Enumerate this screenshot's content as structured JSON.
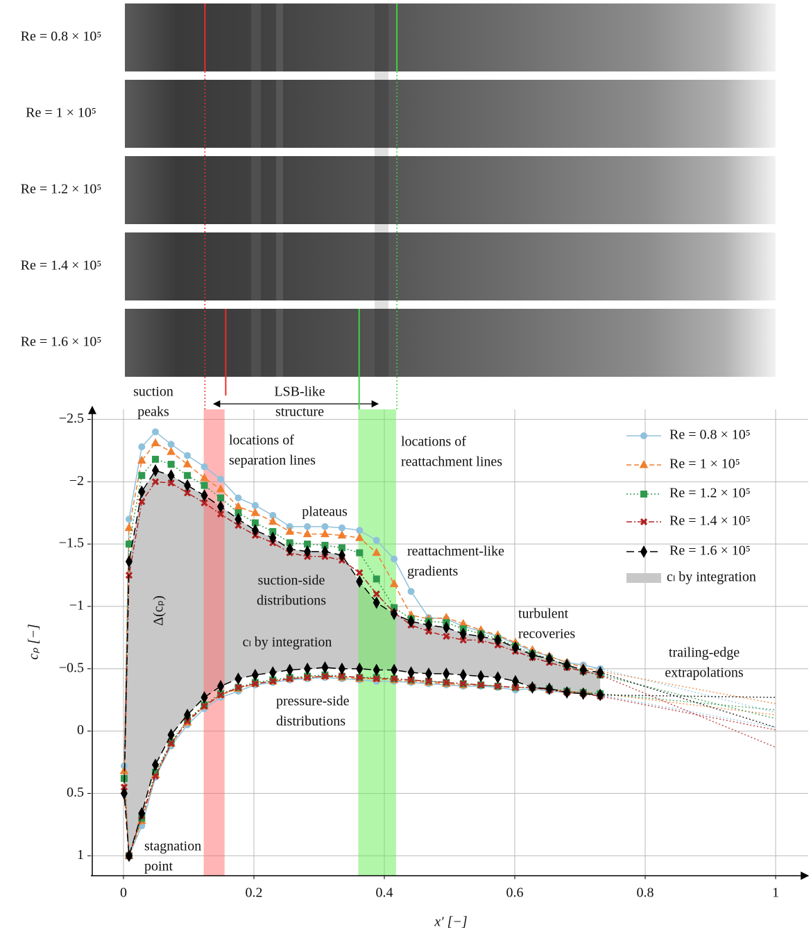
{
  "chart_data": {
    "type": "line",
    "xlabel": "x′ [−]",
    "ylabel": "cₚ [−]",
    "xlim": [
      -0.05,
      1.05
    ],
    "ylim": [
      -2.58,
      1.16
    ],
    "xticks": [
      0,
      0.2,
      0.4,
      0.6,
      0.8,
      1
    ],
    "yticks": [
      {
        "value": -2.5,
        "label": "−2.5"
      },
      {
        "value": -2,
        "label": "−2"
      },
      {
        "value": -1.5,
        "label": "−1.5"
      },
      {
        "value": -1,
        "label": "−1"
      },
      {
        "value": -0.5,
        "label": "−0.5"
      },
      0,
      0.5,
      1
    ],
    "grid": true,
    "legend": "upper right",
    "x": [
      0.731,
      0.705,
      0.68,
      0.653,
      0.627,
      0.601,
      0.574,
      0.548,
      0.521,
      0.495,
      0.468,
      0.441,
      0.415,
      0.388,
      0.362,
      0.335,
      0.309,
      0.282,
      0.255,
      0.229,
      0.202,
      0.176,
      0.149,
      0.124,
      0.098,
      0.073,
      0.049,
      0.028,
      0.0085,
      0.001,
      0.0085,
      0.028,
      0.049,
      0.073,
      0.098,
      0.124,
      0.149,
      0.176,
      0.202,
      0.229,
      0.255,
      0.282,
      0.309,
      0.335,
      0.362,
      0.388,
      0.415,
      0.441,
      0.468,
      0.495,
      0.521,
      0.548,
      0.574,
      0.601,
      0.627,
      0.653,
      0.68,
      0.705,
      0.731
    ],
    "te_x": 1,
    "series": [
      {
        "name": "Re = 0.8 × 10⁵",
        "color": "#8fc1dc",
        "marker": "circle",
        "linestyle": "solid",
        "values": [
          -0.5,
          -0.53,
          -0.55,
          -0.6,
          -0.64,
          -0.7,
          -0.76,
          -0.8,
          -0.84,
          -0.9,
          -0.91,
          -1.12,
          -1.38,
          -1.53,
          -1.61,
          -1.63,
          -1.64,
          -1.64,
          -1.64,
          -1.73,
          -1.81,
          -1.87,
          -2.02,
          -2.12,
          -2.21,
          -2.3,
          -2.4,
          -2.28,
          -1.7,
          0.28,
          1.0,
          0.76,
          0.37,
          0.12,
          -0.05,
          -0.18,
          -0.27,
          -0.32,
          -0.37,
          -0.39,
          -0.41,
          -0.42,
          -0.43,
          -0.42,
          -0.41,
          -0.4,
          -0.4,
          -0.39,
          -0.38,
          -0.37,
          -0.36,
          -0.36,
          -0.35,
          -0.33,
          -0.34,
          -0.32,
          -0.31,
          -0.3,
          -0.29
        ],
        "te_values": [
          -0.15,
          -0.03
        ]
      },
      {
        "name": "Re = 1 × 10⁵",
        "color": "#ef7f2e",
        "marker": "triangle",
        "linestyle": "dashed",
        "values": [
          -0.48,
          -0.51,
          -0.55,
          -0.6,
          -0.65,
          -0.71,
          -0.77,
          -0.81,
          -0.86,
          -0.91,
          -0.9,
          -0.93,
          -1.18,
          -1.43,
          -1.55,
          -1.57,
          -1.58,
          -1.58,
          -1.6,
          -1.68,
          -1.75,
          -1.8,
          -1.94,
          -2.03,
          -2.14,
          -2.24,
          -2.31,
          -2.17,
          -1.63,
          0.32,
          1.0,
          0.72,
          0.35,
          0.1,
          -0.07,
          -0.2,
          -0.29,
          -0.34,
          -0.38,
          -0.4,
          -0.42,
          -0.43,
          -0.44,
          -0.43,
          -0.42,
          -0.42,
          -0.41,
          -0.4,
          -0.39,
          -0.38,
          -0.37,
          -0.37,
          -0.36,
          -0.35,
          -0.35,
          -0.33,
          -0.32,
          -0.31,
          -0.3
        ],
        "te_values": [
          -0.22,
          -0.13
        ]
      },
      {
        "name": "Re = 1.2 × 10⁵",
        "color": "#2e9a4e",
        "marker": "square",
        "linestyle": "dotted",
        "values": [
          -0.45,
          -0.48,
          -0.52,
          -0.58,
          -0.62,
          -0.68,
          -0.74,
          -0.78,
          -0.82,
          -0.87,
          -0.88,
          -0.9,
          -0.99,
          -1.22,
          -1.43,
          -1.47,
          -1.49,
          -1.5,
          -1.51,
          -1.6,
          -1.67,
          -1.75,
          -1.87,
          -1.97,
          -2.05,
          -2.14,
          -2.18,
          -2.05,
          -1.5,
          0.38,
          1.0,
          0.7,
          0.33,
          0.09,
          -0.09,
          -0.21,
          -0.3,
          -0.35,
          -0.39,
          -0.41,
          -0.43,
          -0.44,
          -0.45,
          -0.44,
          -0.43,
          -0.43,
          -0.42,
          -0.41,
          -0.4,
          -0.39,
          -0.38,
          -0.37,
          -0.36,
          -0.35,
          -0.35,
          -0.34,
          -0.32,
          -0.31,
          -0.3
        ],
        "te_values": [
          -0.1,
          -0.17
        ]
      },
      {
        "name": "Re = 1.4 × 10⁵",
        "color": "#b22222",
        "marker": "x",
        "linestyle": "dashdot",
        "values": [
          -0.45,
          -0.48,
          -0.51,
          -0.55,
          -0.59,
          -0.64,
          -0.69,
          -0.73,
          -0.73,
          -0.76,
          -0.8,
          -0.85,
          -0.95,
          -1.1,
          -1.27,
          -1.37,
          -1.4,
          -1.4,
          -1.43,
          -1.51,
          -1.57,
          -1.65,
          -1.74,
          -1.83,
          -1.91,
          -1.99,
          -2.0,
          -1.84,
          -1.25,
          0.45,
          1.0,
          0.68,
          0.36,
          0.1,
          -0.08,
          -0.2,
          -0.29,
          -0.35,
          -0.38,
          -0.4,
          -0.42,
          -0.43,
          -0.44,
          -0.44,
          -0.43,
          -0.42,
          -0.42,
          -0.41,
          -0.4,
          -0.39,
          -0.38,
          -0.37,
          -0.36,
          -0.35,
          -0.35,
          -0.33,
          -0.31,
          -0.3,
          -0.28
        ],
        "te_values": [
          0.13,
          -0.01
        ]
      },
      {
        "name": "Re = 1.6 × 10⁵",
        "color": "#000000",
        "marker": "diamond",
        "linestyle": "longdash",
        "values": [
          -0.47,
          -0.49,
          -0.53,
          -0.58,
          -0.61,
          -0.67,
          -0.73,
          -0.76,
          -0.78,
          -0.83,
          -0.85,
          -0.88,
          -0.94,
          -1.03,
          -1.2,
          -1.41,
          -1.44,
          -1.44,
          -1.46,
          -1.55,
          -1.61,
          -1.7,
          -1.8,
          -1.89,
          -1.97,
          -2.05,
          -2.09,
          -1.92,
          -1.36,
          0.5,
          1.0,
          0.66,
          0.27,
          0.03,
          -0.13,
          -0.27,
          -0.36,
          -0.42,
          -0.45,
          -0.47,
          -0.49,
          -0.5,
          -0.51,
          -0.5,
          -0.5,
          -0.49,
          -0.49,
          -0.47,
          -0.46,
          -0.46,
          -0.45,
          -0.44,
          -0.43,
          -0.4,
          -0.35,
          -0.34,
          -0.31,
          -0.3,
          -0.29
        ],
        "te_values": [
          -0.03,
          -0.27
        ]
      }
    ],
    "fill_label": "cₗ by integration",
    "fill_color": "#c8c8c8",
    "separation_band": [
      0.123,
      0.155
    ],
    "separation_color": "#ff6b6b",
    "reattachment_band": [
      0.36,
      0.418
    ],
    "reattachment_color": "#66ee55",
    "annotations": [
      {
        "lines": [
          "suction",
          "peaks"
        ],
        "color": "#111111"
      },
      {
        "lines": [
          "LSB-like",
          "structure"
        ],
        "color": "#111111"
      },
      {
        "lines": [
          "locations of",
          "separation lines"
        ],
        "color": "#ee2a2a"
      },
      {
        "lines": [
          "locations of",
          "reattachment lines"
        ],
        "color": "#3fd23f"
      },
      {
        "lines": [
          "plateaus"
        ],
        "color": "#111111"
      },
      {
        "lines": [
          "reattachment-like",
          "gradients"
        ],
        "color": "#111111"
      },
      {
        "lines": [
          "suction-side",
          "distributions"
        ],
        "color": "#111111"
      },
      {
        "lines": [
          "cₗ by integration"
        ],
        "color": "#111111"
      },
      {
        "lines": [
          "turbulent",
          "recoveries"
        ],
        "color": "#111111"
      },
      {
        "lines": [
          "trailing-edge",
          "extrapolations"
        ],
        "color": "#111111"
      },
      {
        "lines": [
          "pressure-side",
          "distributions"
        ],
        "color": "#111111"
      },
      {
        "lines": [
          "stagnation",
          "point"
        ],
        "color": "#111111"
      },
      {
        "lines": [
          "Δ(cₚ)"
        ],
        "color": "#111111"
      }
    ]
  }
}
